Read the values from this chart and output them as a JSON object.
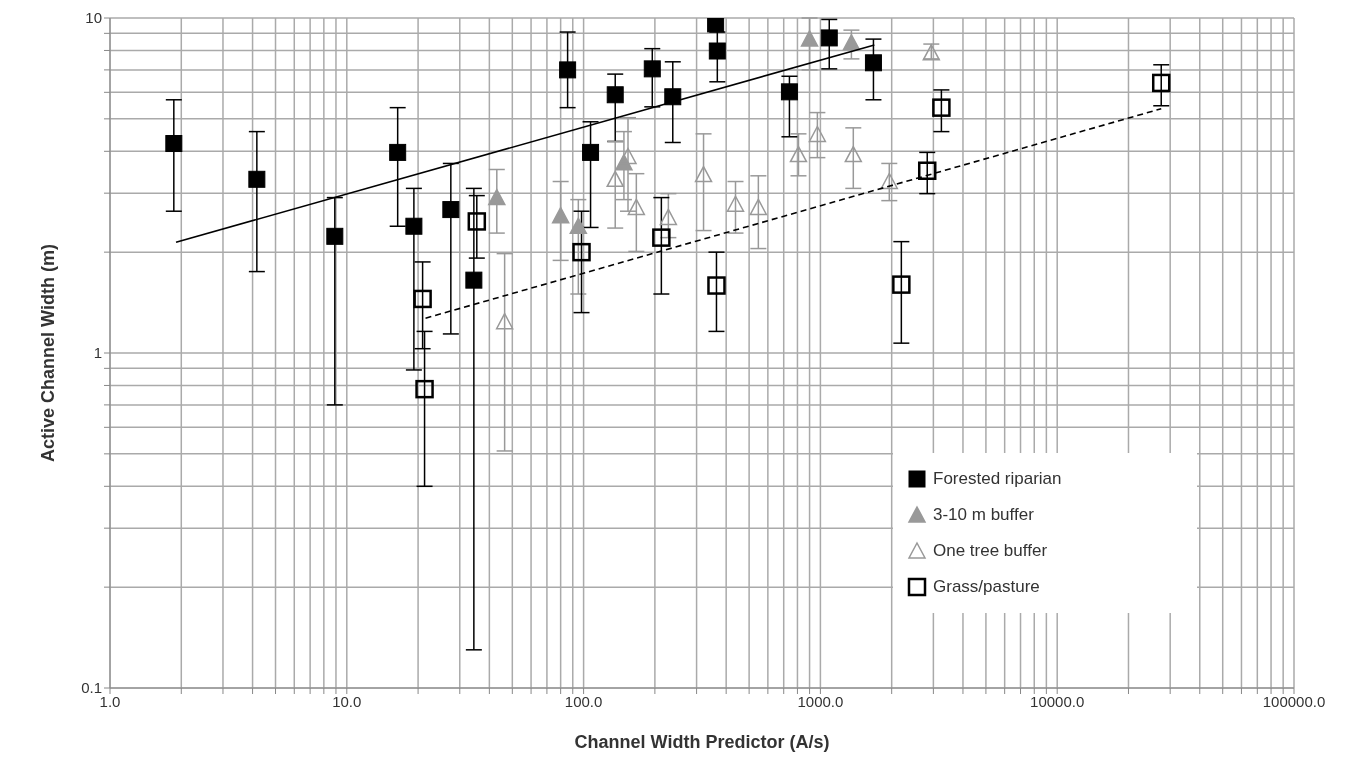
{
  "chart_data": {
    "type": "scatter",
    "xlabel": "Channel Width Predictor (A/s)",
    "ylabel": "Active Channel Width (m)",
    "log": "xy",
    "grid": true,
    "legend": "bottom right",
    "xlim": [
      1,
      100000
    ],
    "ylim": [
      0.1,
      10
    ],
    "xticks": [
      {
        "value": 1,
        "label": "1.0"
      },
      {
        "value": 2,
        "label": null
      },
      {
        "value": 3,
        "label": null
      },
      {
        "value": 4,
        "label": null
      },
      {
        "value": 5,
        "label": null
      },
      {
        "value": 6,
        "label": null
      },
      {
        "value": 7,
        "label": null
      },
      {
        "value": 8,
        "label": null
      },
      {
        "value": 9,
        "label": null
      },
      {
        "value": 10,
        "label": "10.0"
      },
      {
        "value": 20,
        "label": null
      },
      {
        "value": 30,
        "label": null
      },
      {
        "value": 40,
        "label": null
      },
      {
        "value": 50,
        "label": null
      },
      {
        "value": 60,
        "label": null
      },
      {
        "value": 70,
        "label": null
      },
      {
        "value": 80,
        "label": null
      },
      {
        "value": 90,
        "label": null
      },
      {
        "value": 100,
        "label": "100.0"
      },
      {
        "value": 200,
        "label": null
      },
      {
        "value": 300,
        "label": null
      },
      {
        "value": 400,
        "label": null
      },
      {
        "value": 500,
        "label": null
      },
      {
        "value": 600,
        "label": null
      },
      {
        "value": 700,
        "label": null
      },
      {
        "value": 800,
        "label": null
      },
      {
        "value": 900,
        "label": null
      },
      {
        "value": 1000,
        "label": "1000.0"
      },
      {
        "value": 2000,
        "label": null
      },
      {
        "value": 3000,
        "label": null
      },
      {
        "value": 4000,
        "label": null
      },
      {
        "value": 5000,
        "label": null
      },
      {
        "value": 6000,
        "label": null
      },
      {
        "value": 7000,
        "label": null
      },
      {
        "value": 8000,
        "label": null
      },
      {
        "value": 9000,
        "label": null
      },
      {
        "value": 10000,
        "label": "10000.0"
      },
      {
        "value": 20000,
        "label": null
      },
      {
        "value": 30000,
        "label": null
      },
      {
        "value": 40000,
        "label": null
      },
      {
        "value": 50000,
        "label": null
      },
      {
        "value": 60000,
        "label": null
      },
      {
        "value": 70000,
        "label": null
      },
      {
        "value": 80000,
        "label": null
      },
      {
        "value": 90000,
        "label": null
      },
      {
        "value": 100000,
        "label": "100000.0"
      }
    ],
    "yticks": [
      0.1,
      {
        "value": 0.2,
        "label": null
      },
      {
        "value": 0.3,
        "label": null
      },
      {
        "value": 0.4,
        "label": null
      },
      {
        "value": 0.5,
        "label": null
      },
      {
        "value": 0.6,
        "label": null
      },
      {
        "value": 0.7,
        "label": null
      },
      {
        "value": 0.8,
        "label": null
      },
      {
        "value": 0.9,
        "label": null
      },
      1,
      {
        "value": 2,
        "label": null
      },
      {
        "value": 3,
        "label": null
      },
      {
        "value": 4,
        "label": null
      },
      {
        "value": 5,
        "label": null
      },
      {
        "value": 6,
        "label": null
      },
      {
        "value": 7,
        "label": null
      },
      {
        "value": 8,
        "label": null
      },
      {
        "value": 9,
        "label": null
      },
      10
    ],
    "series": [
      {
        "name": "Forested riparian",
        "color": "#000000",
        "marker": "square",
        "x": [
          1.86,
          4.17,
          8.9,
          16.4,
          19.2,
          27.5,
          34.4,
          85.6,
          136,
          195,
          238,
          107,
          361,
          367,
          740,
          1090,
          1675
        ],
        "values": [
          4.22,
          3.3,
          2.23,
          3.97,
          2.39,
          2.68,
          1.65,
          7.0,
          5.9,
          7.05,
          5.82,
          3.97,
          9.6,
          7.97,
          6.02,
          8.72,
          7.35
        ],
        "errors": [
          [
            2.65,
            5.7
          ],
          [
            1.75,
            4.58
          ],
          [
            0.7,
            2.91
          ],
          [
            2.39,
            5.4
          ],
          [
            0.89,
            3.1
          ],
          [
            1.14,
            3.68
          ],
          [
            0.13,
            3.1
          ],
          [
            5.4,
            9.08
          ],
          [
            4.28,
            6.8
          ],
          [
            5.43,
            8.1
          ],
          [
            4.25,
            7.4
          ],
          [
            2.37,
            4.9
          ],
          null,
          [
            6.45,
            9.08
          ],
          [
            4.42,
            6.7
          ],
          [
            7.05,
            9.9
          ],
          [
            5.7,
            8.65
          ]
        ]
      },
      {
        "name": "3-10 m buffer",
        "color": "#999999",
        "marker": "triangle",
        "x": [
          43,
          80,
          95,
          148,
          900,
          1352
        ],
        "values": [
          2.91,
          2.57,
          2.39,
          3.7,
          8.66,
          8.43
        ],
        "errors": [
          [
            2.28,
            3.53
          ],
          [
            1.89,
            3.25
          ],
          [
            1.5,
            2.87
          ],
          [
            2.87,
            4.58
          ],
          [
            7.0,
            10
          ],
          [
            7.55,
            9.2
          ]
        ]
      },
      {
        "name": "One tree buffer",
        "color": "#999999",
        "marker": "triangle-open",
        "x": [
          46.4,
          136,
          154,
          167,
          228,
          321,
          438,
          547,
          808,
          971,
          1377,
          1954,
          2940
        ],
        "values": [
          1.24,
          3.3,
          3.86,
          2.72,
          2.54,
          3.41,
          2.78,
          2.72,
          3.91,
          4.49,
          3.91,
          3.25,
          7.87
        ],
        "errors": [
          [
            0.51,
            1.98
          ],
          [
            2.36,
            4.28
          ],
          [
            2.65,
            5.04
          ],
          [
            2.01,
            3.43
          ],
          [
            2.21,
            2.99
          ],
          [
            2.32,
            4.51
          ],
          [
            2.28,
            3.25
          ],
          [
            2.05,
            3.38
          ],
          [
            3.38,
            4.51
          ],
          [
            3.83,
            5.22
          ],
          [
            3.1,
            4.7
          ],
          [
            2.85,
            3.68
          ],
          [
            7.55,
            8.36
          ]
        ]
      },
      {
        "name": "Grass/pasture",
        "color": "#000000",
        "marker": "square-open",
        "x": [
          20.9,
          21.3,
          35.4,
          213,
          98,
          364,
          2197,
          2826,
          3243,
          27500
        ],
        "values": [
          1.45,
          0.78,
          2.47,
          2.21,
          2.0,
          1.59,
          1.6,
          3.5,
          5.4,
          6.4
        ],
        "errors": [
          [
            1.03,
            1.87
          ],
          [
            0.4,
            1.16
          ],
          [
            1.92,
            2.95
          ],
          [
            1.5,
            2.91
          ],
          [
            1.32,
            2.65
          ],
          [
            1.16,
            2.0
          ],
          [
            1.07,
            2.15
          ],
          [
            2.99,
            3.97
          ],
          [
            4.58,
            6.1
          ],
          [
            5.47,
            7.25
          ]
        ]
      },
      {
        "type": "line",
        "color": "#000000",
        "line_style": "solid",
        "marker": "none",
        "x": [
          1.9,
          1690
        ],
        "values": [
          2.14,
          8.31
        ]
      },
      {
        "type": "line",
        "color": "#000000",
        "line_style": "dashed",
        "marker": "none",
        "x": [
          21.5,
          27500
        ],
        "values": [
          1.27,
          5.36
        ]
      }
    ]
  }
}
